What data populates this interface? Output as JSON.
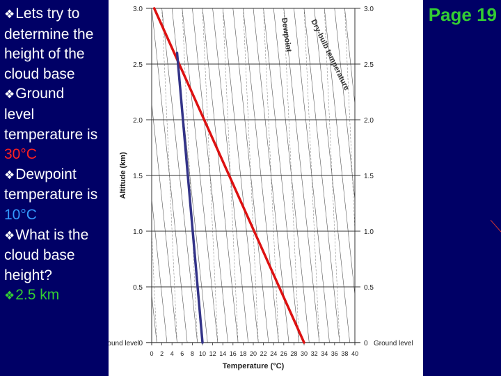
{
  "slide": {
    "bullets": [
      {
        "lines": [
          "Lets try to",
          "determine the",
          "height of the",
          "cloud base"
        ]
      },
      {
        "lines": [
          "Ground",
          "level",
          "temperature is"
        ],
        "value": "30°C",
        "value_color": "#ff2020"
      },
      {
        "lines": [
          "Dewpoint",
          "temperature is"
        ],
        "value": "10°C",
        "value_color": "#3399ff"
      },
      {
        "lines": [
          "What is the",
          "cloud base",
          "height?"
        ]
      },
      {
        "lines": [],
        "value": "2.5 km",
        "value_color": "#33cc33"
      }
    ],
    "bullet_glyph": "❖",
    "page_label": "Page 19"
  },
  "colors": {
    "background": "#000066",
    "dry_line": "#dd1111",
    "dew_line": "#333388",
    "answer": "#33cc33"
  },
  "chart_data": {
    "type": "line",
    "xlabel": "Temperature (°C)",
    "ylabel": "Altitude (km)",
    "x_ticks": [
      0,
      2,
      4,
      6,
      8,
      10,
      12,
      14,
      16,
      18,
      20,
      22,
      24,
      26,
      28,
      30,
      32,
      34,
      36,
      38,
      40
    ],
    "y_ticks_left": [
      "0",
      "0.5",
      "1.0",
      "1.5",
      "2.0",
      "2.5",
      "3.0"
    ],
    "y_ticks_right": [
      "0",
      "0.5",
      "1.0",
      "1.5",
      "2.0",
      "2.5",
      "3.0"
    ],
    "ground_label_left": "Ground level",
    "ground_label_right": "Ground level",
    "xlim": [
      0,
      40
    ],
    "ylim": [
      0,
      3
    ],
    "grid": true,
    "annotations": [
      "Dewpoint",
      "Dry-bulb temperature"
    ],
    "series": [
      {
        "x": [
          30,
          0.5
        ],
        "y": [
          0,
          3.0
        ],
        "color": "#dd1111"
      },
      {
        "x": [
          10,
          5
        ],
        "y": [
          0,
          2.6
        ],
        "color": "#333388"
      }
    ]
  }
}
